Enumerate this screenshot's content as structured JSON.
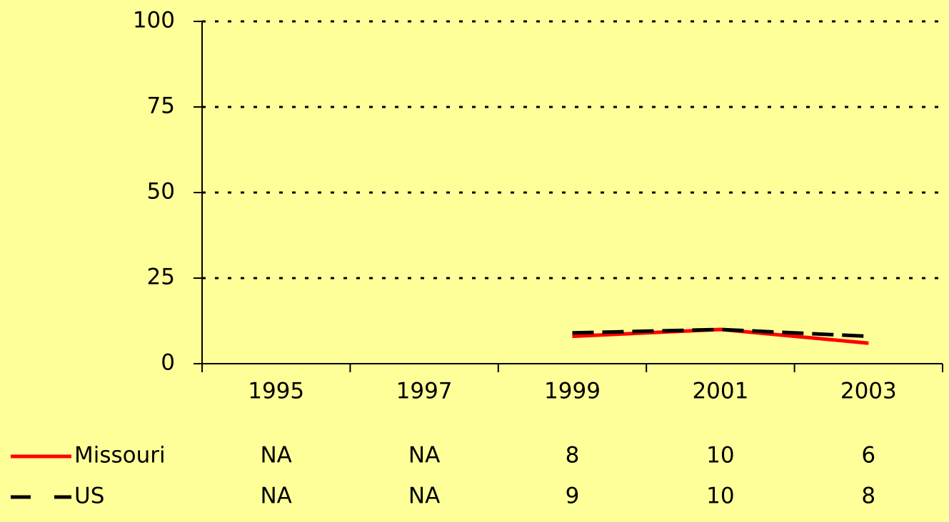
{
  "chart_data": {
    "type": "line",
    "categories": [
      "1995",
      "1997",
      "1999",
      "2001",
      "2003"
    ],
    "series": [
      {
        "name": "Missouri",
        "color": "#ff0000",
        "dash": false,
        "values": [
          null,
          null,
          8,
          10,
          6
        ],
        "value_labels": [
          "NA",
          "NA",
          "8",
          "10",
          "6"
        ]
      },
      {
        "name": "US",
        "color": "#000000",
        "dash": true,
        "values": [
          null,
          null,
          9,
          10,
          8
        ],
        "value_labels": [
          "NA",
          "NA",
          "9",
          "10",
          "8"
        ]
      }
    ],
    "ylim": [
      0,
      100
    ],
    "yticks": [
      0,
      25,
      50,
      75,
      100
    ],
    "grid": true
  }
}
